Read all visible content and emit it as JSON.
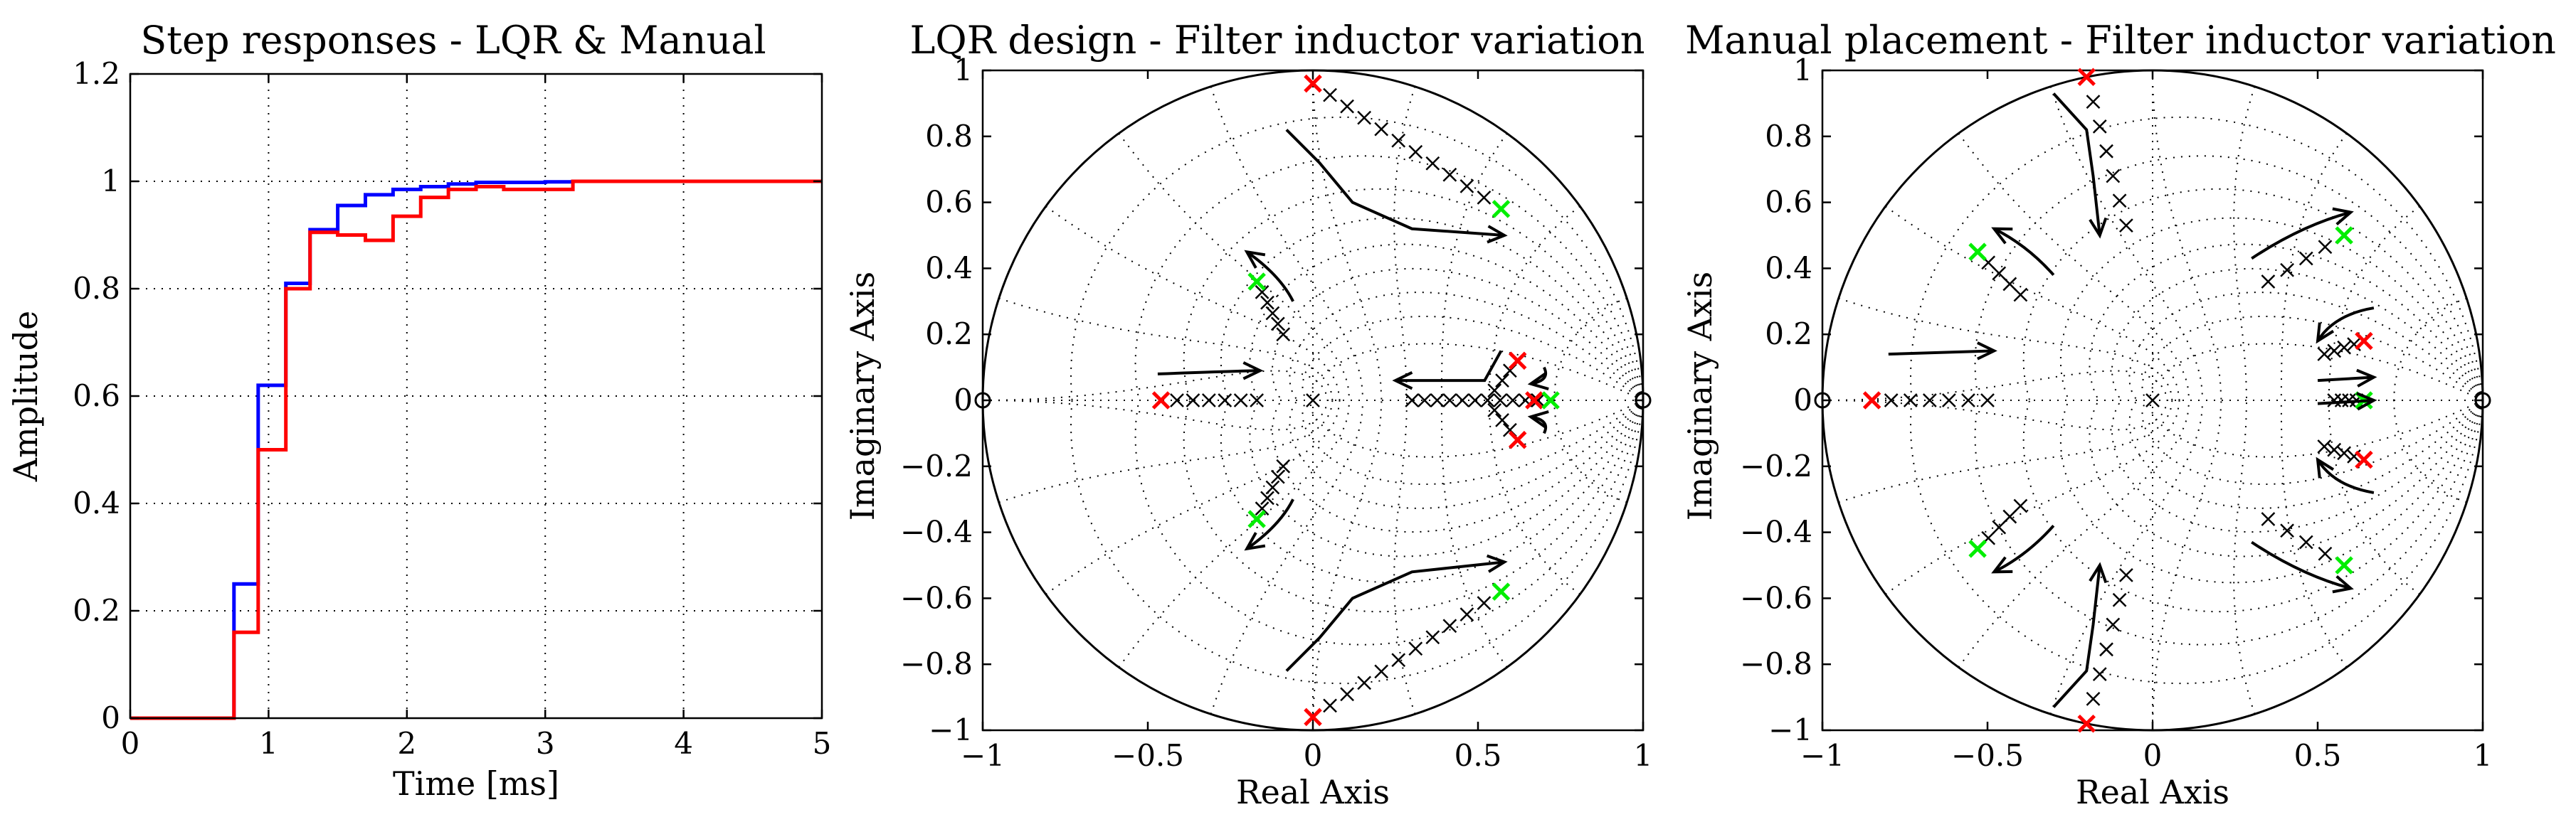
{
  "chart_data": [
    {
      "type": "line",
      "title": "Step responses - LQR & Manual",
      "xlabel": "Time [ms]",
      "ylabel": "Amplitude",
      "xlim": [
        0,
        5
      ],
      "ylim": [
        0,
        1.2
      ],
      "xticks": [
        "0",
        "1",
        "2",
        "3",
        "4",
        "5"
      ],
      "yticks": [
        "0",
        "0.2",
        "0.4",
        "0.6",
        "0.8",
        "1",
        "1.2"
      ],
      "reference": 1,
      "series": [
        {
          "name": "LQR",
          "color": "#0000ff",
          "step": true,
          "x": [
            0,
            0.75,
            0.925,
            1.125,
            1.3,
            1.5,
            1.7,
            1.9,
            2.1,
            2.3,
            2.5,
            3.0,
            3.2,
            5.0
          ],
          "y": [
            0,
            0.25,
            0.62,
            0.81,
            0.91,
            0.955,
            0.975,
            0.985,
            0.99,
            0.995,
            0.998,
            0.999,
            1.0,
            1.0
          ]
        },
        {
          "name": "Manual",
          "color": "#ff0000",
          "step": true,
          "x": [
            0,
            0.75,
            0.925,
            1.125,
            1.3,
            1.5,
            1.7,
            1.9,
            2.1,
            2.3,
            2.5,
            2.7,
            3.2,
            5.0
          ],
          "y": [
            0,
            0.16,
            0.5,
            0.8,
            0.905,
            0.9,
            0.89,
            0.935,
            0.97,
            0.985,
            0.99,
            0.985,
            1.0,
            1.0
          ]
        }
      ]
    },
    {
      "type": "scatter",
      "title": "LQR design - Filter inductor variation",
      "xlabel": "Real Axis",
      "ylabel": "Imaginary Axis",
      "xlim": [
        -1,
        1
      ],
      "ylim": [
        -1,
        1
      ],
      "xticks": [
        "−1",
        "−0.5",
        "0",
        "0.5",
        "1"
      ],
      "yticks": [
        "−1",
        "−0.8",
        "−0.6",
        "−0.4",
        "−0.2",
        "0",
        "0.2",
        "0.4",
        "0.6",
        "0.8",
        "1"
      ],
      "zeros": [
        [
          -1,
          0
        ],
        [
          1,
          0
        ]
      ],
      "pole_tracks": [
        {
          "from": [
            0,
            0.96
          ],
          "to": [
            0.57,
            0.58
          ],
          "n": 12
        },
        {
          "from": [
            0,
            -0.96
          ],
          "to": [
            0.57,
            -0.58
          ],
          "n": 12
        },
        {
          "from": [
            -0.09,
            0.2
          ],
          "to": [
            -0.17,
            0.36
          ],
          "n": 6
        },
        {
          "from": [
            -0.09,
            -0.2
          ],
          "to": [
            -0.17,
            -0.36
          ],
          "n": 6
        },
        {
          "from": [
            -0.17,
            0
          ],
          "to": [
            -0.46,
            0
          ],
          "n": 7
        },
        {
          "from": [
            0.3,
            0
          ],
          "to": [
            0.72,
            0
          ],
          "n": 12
        },
        {
          "from": [
            0.55,
            0.03
          ],
          "to": [
            0.62,
            0.12
          ],
          "n": 4
        },
        {
          "from": [
            0.55,
            -0.03
          ],
          "to": [
            0.62,
            -0.12
          ],
          "n": 4
        }
      ],
      "single_poles": [
        [
          0,
          0
        ]
      ],
      "red_poles": [
        [
          0,
          0.96
        ],
        [
          0,
          -0.96
        ],
        [
          -0.46,
          0
        ],
        [
          0.62,
          0.12
        ],
        [
          0.62,
          -0.12
        ],
        [
          0.67,
          0
        ]
      ],
      "green_poles": [
        [
          0.57,
          0.58
        ],
        [
          0.57,
          -0.58
        ],
        [
          -0.17,
          0.36
        ],
        [
          -0.17,
          -0.36
        ],
        [
          0.72,
          0
        ]
      ],
      "arrows": [
        [
          [
            -0.08,
            0.82
          ],
          [
            0.02,
            0.72
          ],
          [
            0.12,
            0.6
          ],
          [
            0.3,
            0.52
          ],
          [
            0.58,
            0.5
          ]
        ],
        [
          [
            -0.08,
            -0.82
          ],
          [
            0.02,
            -0.72
          ],
          [
            0.12,
            -0.6
          ],
          [
            0.3,
            -0.52
          ],
          [
            0.58,
            -0.49
          ]
        ],
        [
          [
            -0.06,
            0.3
          ],
          [
            -0.1,
            0.38
          ],
          [
            -0.2,
            0.45
          ]
        ],
        [
          [
            -0.06,
            -0.3
          ],
          [
            -0.1,
            -0.38
          ],
          [
            -0.2,
            -0.45
          ]
        ],
        [
          [
            -0.47,
            0.08
          ],
          [
            -0.2,
            0.09
          ],
          [
            -0.16,
            0.09
          ]
        ],
        [
          [
            0.57,
            0.15
          ],
          [
            0.52,
            0.06
          ],
          [
            0.27,
            0.06
          ],
          [
            0.25,
            0.06
          ]
        ],
        [
          [
            0.7,
            0.1
          ],
          [
            0.72,
            0.06
          ],
          [
            0.66,
            0.05
          ]
        ],
        [
          [
            0.7,
            -0.1
          ],
          [
            0.72,
            -0.06
          ],
          [
            0.66,
            -0.05
          ]
        ]
      ]
    },
    {
      "type": "scatter",
      "title": "Manual placement - Filter inductor variation",
      "xlabel": "Real Axis",
      "ylabel": "Imaginary Axis",
      "xlim": [
        -1,
        1
      ],
      "ylim": [
        -1,
        1
      ],
      "xticks": [
        "−1",
        "−0.5",
        "0",
        "0.5",
        "1"
      ],
      "yticks": [
        "−1",
        "−0.8",
        "−0.6",
        "−0.4",
        "−0.2",
        "0",
        "0.2",
        "0.4",
        "0.6",
        "0.8",
        "1"
      ],
      "zeros": [
        [
          -1,
          0
        ],
        [
          1,
          0
        ]
      ],
      "pole_tracks": [
        {
          "from": [
            -0.2,
            0.98
          ],
          "to": [
            -0.08,
            0.53
          ],
          "n": 7
        },
        {
          "from": [
            -0.2,
            -0.98
          ],
          "to": [
            -0.08,
            -0.53
          ],
          "n": 7
        },
        {
          "from": [
            -0.53,
            0.45
          ],
          "to": [
            -0.4,
            0.32
          ],
          "n": 5
        },
        {
          "from": [
            -0.53,
            -0.45
          ],
          "to": [
            -0.4,
            -0.32
          ],
          "n": 5
        },
        {
          "from": [
            -0.85,
            0
          ],
          "to": [
            -0.5,
            0
          ],
          "n": 7
        },
        {
          "from": [
            0.35,
            0.36
          ],
          "to": [
            0.58,
            0.5
          ],
          "n": 5
        },
        {
          "from": [
            0.35,
            -0.36
          ],
          "to": [
            0.58,
            -0.5
          ],
          "n": 5
        },
        {
          "from": [
            0.52,
            0.14
          ],
          "to": [
            0.64,
            0.18
          ],
          "n": 5
        },
        {
          "from": [
            0.52,
            -0.14
          ],
          "to": [
            0.64,
            -0.18
          ],
          "n": 5
        },
        {
          "from": [
            0.55,
            0
          ],
          "to": [
            0.64,
            0
          ],
          "n": 5
        }
      ],
      "single_poles": [
        [
          0,
          0
        ]
      ],
      "red_poles": [
        [
          -0.2,
          0.98
        ],
        [
          -0.2,
          -0.98
        ],
        [
          -0.85,
          0
        ],
        [
          0.64,
          0.18
        ],
        [
          0.64,
          -0.18
        ]
      ],
      "green_poles": [
        [
          -0.53,
          0.45
        ],
        [
          -0.53,
          -0.45
        ],
        [
          0.58,
          0.5
        ],
        [
          0.58,
          -0.5
        ],
        [
          0.64,
          0
        ]
      ],
      "arrows": [
        [
          [
            -0.3,
            0.93
          ],
          [
            -0.2,
            0.82
          ],
          [
            -0.18,
            0.68
          ],
          [
            -0.16,
            0.5
          ]
        ],
        [
          [
            -0.3,
            -0.93
          ],
          [
            -0.2,
            -0.82
          ],
          [
            -0.18,
            -0.68
          ],
          [
            -0.16,
            -0.5
          ]
        ],
        [
          [
            -0.3,
            0.38
          ],
          [
            -0.38,
            0.47
          ],
          [
            -0.48,
            0.52
          ]
        ],
        [
          [
            -0.3,
            -0.38
          ],
          [
            -0.38,
            -0.47
          ],
          [
            -0.48,
            -0.52
          ]
        ],
        [
          [
            -0.8,
            0.14
          ],
          [
            -0.5,
            0.15
          ],
          [
            -0.48,
            0.15
          ]
        ],
        [
          [
            0.3,
            0.43
          ],
          [
            0.45,
            0.53
          ],
          [
            0.6,
            0.57
          ]
        ],
        [
          [
            0.3,
            -0.43
          ],
          [
            0.45,
            -0.53
          ],
          [
            0.6,
            -0.57
          ]
        ],
        [
          [
            0.67,
            0.28
          ],
          [
            0.55,
            0.26
          ],
          [
            0.5,
            0.18
          ]
        ],
        [
          [
            0.67,
            -0.28
          ],
          [
            0.55,
            -0.26
          ],
          [
            0.5,
            -0.18
          ]
        ],
        [
          [
            0.5,
            0.06
          ],
          [
            0.67,
            0.07
          ]
        ],
        [
          [
            0.5,
            -0.01
          ],
          [
            0.67,
            0.0
          ]
        ]
      ]
    }
  ]
}
